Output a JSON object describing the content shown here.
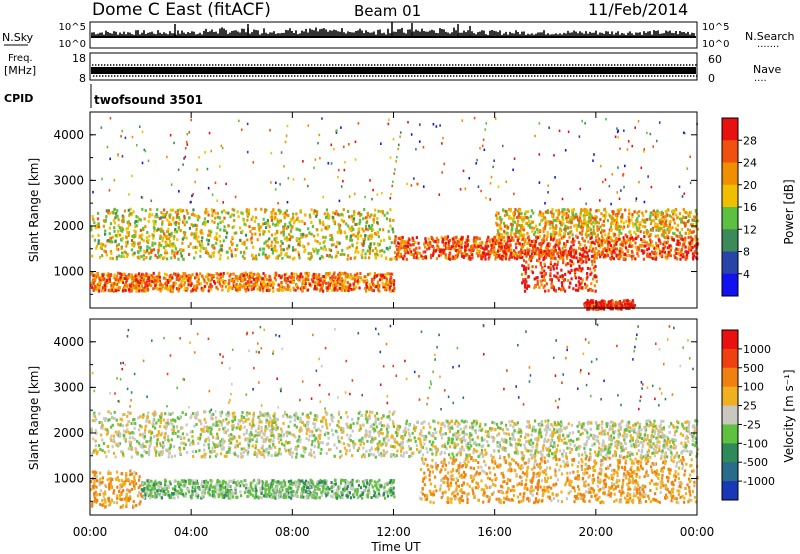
{
  "header": {
    "station": "Dome C East (fitACF)",
    "beam": "Beam 01",
    "date": "11/Feb/2014"
  },
  "strip_nsky": {
    "label": "N.Sky",
    "ticks_left": [
      "10^5",
      "10^0"
    ],
    "right_label": "N.Search",
    "ticks_right": [
      "10^5",
      "10^0"
    ]
  },
  "strip_freq": {
    "label_top": "Freq.",
    "label_units": "[MHz]",
    "ticks_left": [
      "18",
      "8"
    ],
    "right_label": "Nave",
    "ticks_right": [
      "60",
      "0"
    ]
  },
  "strip_cpid": {
    "label": "CPID",
    "text": "twofsound 3501"
  },
  "x_axis": {
    "label": "Time UT",
    "ticks": [
      "00:00",
      "04:00",
      "08:00",
      "12:00",
      "16:00",
      "20:00",
      "00:00"
    ]
  },
  "panel_power": {
    "ylabel": "Slant Range [km]",
    "yticks": [
      "1000",
      "2000",
      "3000",
      "4000"
    ],
    "colorbar_label": "Power [dB]",
    "colorbar_ticks": [
      "4",
      "8",
      "12",
      "16",
      "20",
      "24",
      "28"
    ],
    "colors": [
      "#1010f0",
      "#2844a8",
      "#3c8a5a",
      "#5cc040",
      "#f0c000",
      "#f09000",
      "#f05010",
      "#e81010"
    ]
  },
  "panel_velocity": {
    "ylabel": "Slant Range [km]",
    "yticks": [
      "1000",
      "2000",
      "3000",
      "4000"
    ],
    "colorbar_label": "Velocity [m s⁻¹]",
    "colorbar_ticks": [
      "1000",
      "500",
      "100",
      "25",
      "-25",
      "-100",
      "-500",
      "-1000"
    ],
    "colors": [
      "#1838b8",
      "#2a6a8a",
      "#2f8a5a",
      "#60c040",
      "#c8c8c0",
      "#f0b020",
      "#f08010",
      "#f04010",
      "#e81010"
    ]
  },
  "chart_data": [
    {
      "type": "heatmap",
      "title": "",
      "xlabel": "Time UT",
      "ylabel": "Slant Range [km]",
      "xlim": [
        "00:00",
        "24:00"
      ],
      "ylim": [
        200,
        4500
      ],
      "colorbar": "Power [dB]",
      "zlim": [
        0,
        32
      ],
      "echo_bands": [
        {
          "t_start": 0,
          "t_end": 12,
          "range_km": [
            600,
            1000
          ],
          "power_db": 24
        },
        {
          "t_start": 0,
          "t_end": 12,
          "range_km": [
            1300,
            2400
          ],
          "power_db": 18
        },
        {
          "t_start": 12,
          "t_end": 24,
          "range_km": [
            1300,
            1800
          ],
          "power_db": 26
        },
        {
          "t_start": 17,
          "t_end": 20,
          "range_km": [
            600,
            1500
          ],
          "power_db": 28
        },
        {
          "t_start": 16,
          "t_end": 24,
          "range_km": [
            1800,
            2400
          ],
          "power_db": 20
        },
        {
          "t_start": 19.5,
          "t_end": 21.5,
          "range_km": [
            200,
            400
          ],
          "power_db": 30
        }
      ]
    },
    {
      "type": "heatmap",
      "title": "",
      "xlabel": "Time UT",
      "ylabel": "Slant Range [km]",
      "xlim": [
        "00:00",
        "24:00"
      ],
      "ylim": [
        200,
        4500
      ],
      "colorbar": "Velocity [m s⁻¹]",
      "zlim": [
        -1000,
        1000
      ],
      "echo_bands": [
        {
          "t_start": 0,
          "t_end": 12,
          "range_km": [
            1500,
            2500
          ],
          "velocity_ms": 0
        },
        {
          "t_start": 2,
          "t_end": 12,
          "range_km": [
            600,
            1000
          ],
          "velocity_ms": -200
        },
        {
          "t_start": 0,
          "t_end": 2,
          "range_km": [
            400,
            1200
          ],
          "velocity_ms": 300
        },
        {
          "t_start": 13,
          "t_end": 24,
          "range_km": [
            500,
            1500
          ],
          "velocity_ms": 300
        },
        {
          "t_start": 12,
          "t_end": 24,
          "range_km": [
            1500,
            2300
          ],
          "velocity_ms": 0
        }
      ]
    }
  ]
}
